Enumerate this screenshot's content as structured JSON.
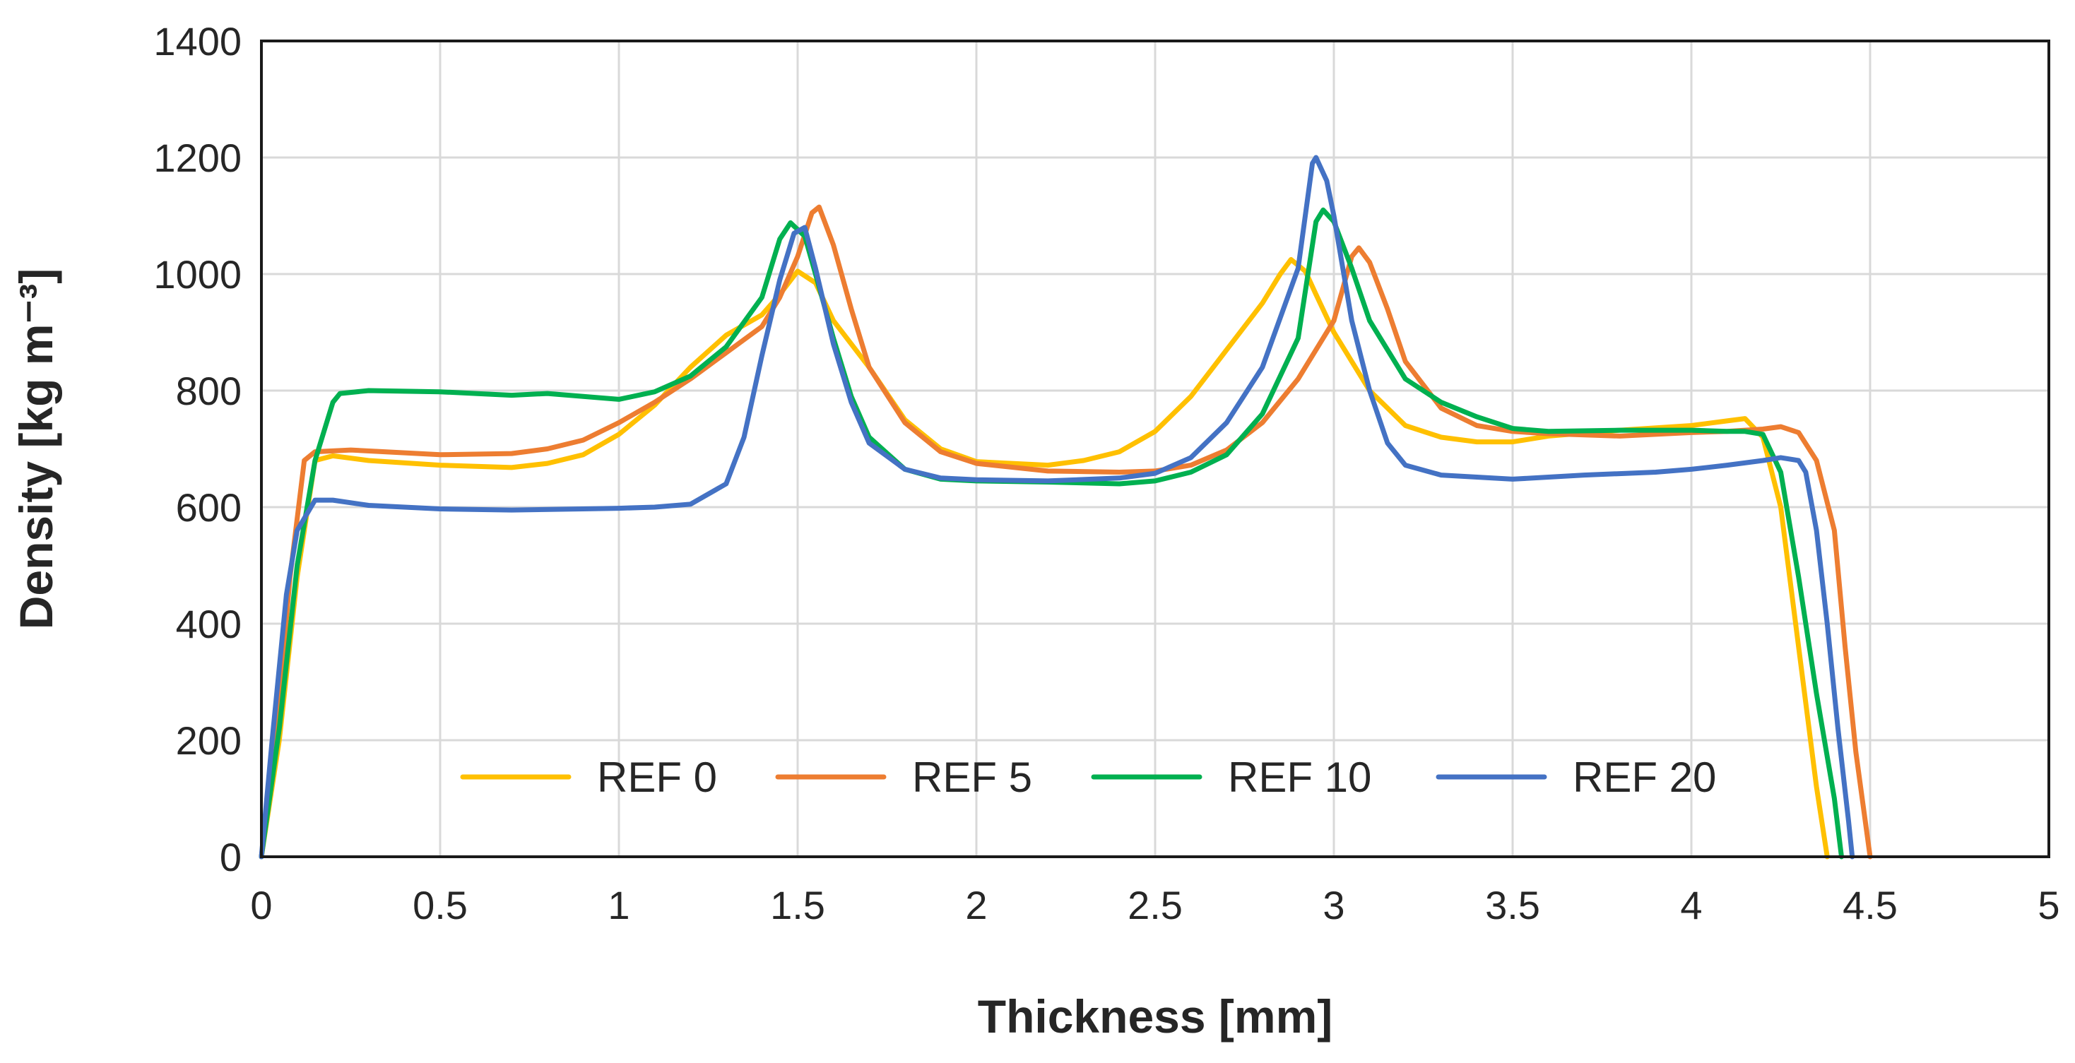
{
  "chart_data": {
    "type": "line",
    "title": "",
    "xlabel": "Thickness [mm]",
    "ylabel": "Density [kg m⁻³]",
    "xlim": [
      0,
      5
    ],
    "ylim": [
      0,
      1400
    ],
    "xticks": [
      0,
      0.5,
      1,
      1.5,
      2,
      2.5,
      3,
      3.5,
      4,
      4.5,
      5
    ],
    "xtick_labels": [
      "0",
      "0.5",
      "1",
      "1.5",
      "2",
      "2.5",
      "3",
      "3.5",
      "4",
      "4.5",
      "5"
    ],
    "yticks": [
      0,
      200,
      400,
      600,
      800,
      1000,
      1200,
      1400
    ],
    "ytick_labels": [
      "0",
      "200",
      "400",
      "600",
      "800",
      "1000",
      "1200",
      "1400"
    ],
    "grid": true,
    "legend_position": "bottom-center-inside",
    "series": [
      {
        "name": "REF 0",
        "color": "#FFC000",
        "points": [
          [
            0,
            0
          ],
          [
            0.05,
            200
          ],
          [
            0.1,
            480
          ],
          [
            0.15,
            680
          ],
          [
            0.2,
            688
          ],
          [
            0.3,
            680
          ],
          [
            0.5,
            672
          ],
          [
            0.7,
            668
          ],
          [
            0.8,
            675
          ],
          [
            0.9,
            690
          ],
          [
            1.0,
            725
          ],
          [
            1.1,
            775
          ],
          [
            1.2,
            840
          ],
          [
            1.3,
            895
          ],
          [
            1.4,
            930
          ],
          [
            1.45,
            965
          ],
          [
            1.5,
            1005
          ],
          [
            1.55,
            985
          ],
          [
            1.6,
            920
          ],
          [
            1.7,
            840
          ],
          [
            1.8,
            750
          ],
          [
            1.9,
            700
          ],
          [
            2.0,
            678
          ],
          [
            2.2,
            672
          ],
          [
            2.3,
            680
          ],
          [
            2.4,
            695
          ],
          [
            2.5,
            730
          ],
          [
            2.6,
            790
          ],
          [
            2.7,
            870
          ],
          [
            2.8,
            950
          ],
          [
            2.85,
            1000
          ],
          [
            2.88,
            1025
          ],
          [
            2.92,
            1005
          ],
          [
            2.95,
            965
          ],
          [
            3.0,
            900
          ],
          [
            3.1,
            800
          ],
          [
            3.2,
            740
          ],
          [
            3.3,
            720
          ],
          [
            3.4,
            712
          ],
          [
            3.5,
            712
          ],
          [
            3.6,
            722
          ],
          [
            3.8,
            732
          ],
          [
            4.0,
            740
          ],
          [
            4.1,
            748
          ],
          [
            4.15,
            752
          ],
          [
            4.2,
            720
          ],
          [
            4.25,
            600
          ],
          [
            4.3,
            360
          ],
          [
            4.35,
            120
          ],
          [
            4.38,
            0
          ]
        ]
      },
      {
        "name": "REF 5",
        "color": "#ED7D31",
        "points": [
          [
            0,
            0
          ],
          [
            0.04,
            200
          ],
          [
            0.08,
            480
          ],
          [
            0.12,
            680
          ],
          [
            0.15,
            695
          ],
          [
            0.25,
            698
          ],
          [
            0.5,
            690
          ],
          [
            0.7,
            692
          ],
          [
            0.8,
            700
          ],
          [
            0.9,
            715
          ],
          [
            1.0,
            745
          ],
          [
            1.1,
            780
          ],
          [
            1.2,
            820
          ],
          [
            1.3,
            865
          ],
          [
            1.4,
            910
          ],
          [
            1.45,
            960
          ],
          [
            1.5,
            1030
          ],
          [
            1.54,
            1105
          ],
          [
            1.56,
            1115
          ],
          [
            1.6,
            1050
          ],
          [
            1.65,
            940
          ],
          [
            1.7,
            840
          ],
          [
            1.8,
            745
          ],
          [
            1.9,
            695
          ],
          [
            2.0,
            675
          ],
          [
            2.2,
            662
          ],
          [
            2.4,
            660
          ],
          [
            2.5,
            662
          ],
          [
            2.6,
            672
          ],
          [
            2.7,
            698
          ],
          [
            2.8,
            745
          ],
          [
            2.9,
            820
          ],
          [
            3.0,
            920
          ],
          [
            3.05,
            1030
          ],
          [
            3.07,
            1045
          ],
          [
            3.1,
            1020
          ],
          [
            3.15,
            940
          ],
          [
            3.2,
            850
          ],
          [
            3.3,
            770
          ],
          [
            3.4,
            740
          ],
          [
            3.5,
            730
          ],
          [
            3.6,
            726
          ],
          [
            3.8,
            722
          ],
          [
            4.0,
            728
          ],
          [
            4.1,
            730
          ],
          [
            4.2,
            734
          ],
          [
            4.25,
            738
          ],
          [
            4.3,
            728
          ],
          [
            4.35,
            680
          ],
          [
            4.4,
            560
          ],
          [
            4.43,
            360
          ],
          [
            4.46,
            180
          ],
          [
            4.5,
            0
          ]
        ]
      },
      {
        "name": "REF 10",
        "color": "#00B050",
        "points": [
          [
            0,
            0
          ],
          [
            0.05,
            220
          ],
          [
            0.1,
            500
          ],
          [
            0.15,
            680
          ],
          [
            0.2,
            780
          ],
          [
            0.22,
            795
          ],
          [
            0.3,
            800
          ],
          [
            0.5,
            798
          ],
          [
            0.7,
            792
          ],
          [
            0.8,
            795
          ],
          [
            0.9,
            790
          ],
          [
            1.0,
            785
          ],
          [
            1.1,
            798
          ],
          [
            1.2,
            825
          ],
          [
            1.3,
            875
          ],
          [
            1.4,
            960
          ],
          [
            1.45,
            1060
          ],
          [
            1.48,
            1088
          ],
          [
            1.52,
            1065
          ],
          [
            1.55,
            1000
          ],
          [
            1.6,
            890
          ],
          [
            1.65,
            790
          ],
          [
            1.7,
            720
          ],
          [
            1.8,
            665
          ],
          [
            1.9,
            648
          ],
          [
            2.0,
            645
          ],
          [
            2.2,
            643
          ],
          [
            2.4,
            640
          ],
          [
            2.5,
            645
          ],
          [
            2.6,
            660
          ],
          [
            2.7,
            690
          ],
          [
            2.8,
            760
          ],
          [
            2.9,
            890
          ],
          [
            2.95,
            1090
          ],
          [
            2.97,
            1110
          ],
          [
            3.0,
            1090
          ],
          [
            3.05,
            1010
          ],
          [
            3.1,
            920
          ],
          [
            3.2,
            820
          ],
          [
            3.3,
            780
          ],
          [
            3.4,
            755
          ],
          [
            3.5,
            735
          ],
          [
            3.6,
            730
          ],
          [
            3.8,
            732
          ],
          [
            4.0,
            732
          ],
          [
            4.1,
            730
          ],
          [
            4.15,
            730
          ],
          [
            4.2,
            725
          ],
          [
            4.25,
            660
          ],
          [
            4.3,
            480
          ],
          [
            4.35,
            280
          ],
          [
            4.4,
            100
          ],
          [
            4.42,
            0
          ]
        ]
      },
      {
        "name": "REF 20",
        "color": "#4472C4",
        "points": [
          [
            0,
            0
          ],
          [
            0.03,
            200
          ],
          [
            0.07,
            450
          ],
          [
            0.1,
            560
          ],
          [
            0.15,
            612
          ],
          [
            0.2,
            612
          ],
          [
            0.3,
            603
          ],
          [
            0.5,
            597
          ],
          [
            0.7,
            595
          ],
          [
            0.9,
            597
          ],
          [
            1.0,
            598
          ],
          [
            1.1,
            600
          ],
          [
            1.2,
            605
          ],
          [
            1.3,
            640
          ],
          [
            1.35,
            720
          ],
          [
            1.4,
            860
          ],
          [
            1.45,
            990
          ],
          [
            1.49,
            1070
          ],
          [
            1.52,
            1080
          ],
          [
            1.55,
            1010
          ],
          [
            1.6,
            880
          ],
          [
            1.65,
            780
          ],
          [
            1.7,
            710
          ],
          [
            1.8,
            665
          ],
          [
            1.9,
            650
          ],
          [
            2.0,
            647
          ],
          [
            2.2,
            645
          ],
          [
            2.4,
            650
          ],
          [
            2.5,
            658
          ],
          [
            2.6,
            685
          ],
          [
            2.7,
            745
          ],
          [
            2.8,
            840
          ],
          [
            2.9,
            1010
          ],
          [
            2.94,
            1190
          ],
          [
            2.95,
            1200
          ],
          [
            2.98,
            1160
          ],
          [
            3.0,
            1100
          ],
          [
            3.05,
            920
          ],
          [
            3.1,
            800
          ],
          [
            3.15,
            710
          ],
          [
            3.2,
            672
          ],
          [
            3.3,
            655
          ],
          [
            3.5,
            648
          ],
          [
            3.7,
            655
          ],
          [
            3.9,
            660
          ],
          [
            4.0,
            665
          ],
          [
            4.1,
            672
          ],
          [
            4.2,
            680
          ],
          [
            4.25,
            685
          ],
          [
            4.3,
            680
          ],
          [
            4.32,
            660
          ],
          [
            4.35,
            560
          ],
          [
            4.38,
            400
          ],
          [
            4.41,
            220
          ],
          [
            4.44,
            60
          ],
          [
            4.45,
            0
          ]
        ]
      }
    ]
  }
}
